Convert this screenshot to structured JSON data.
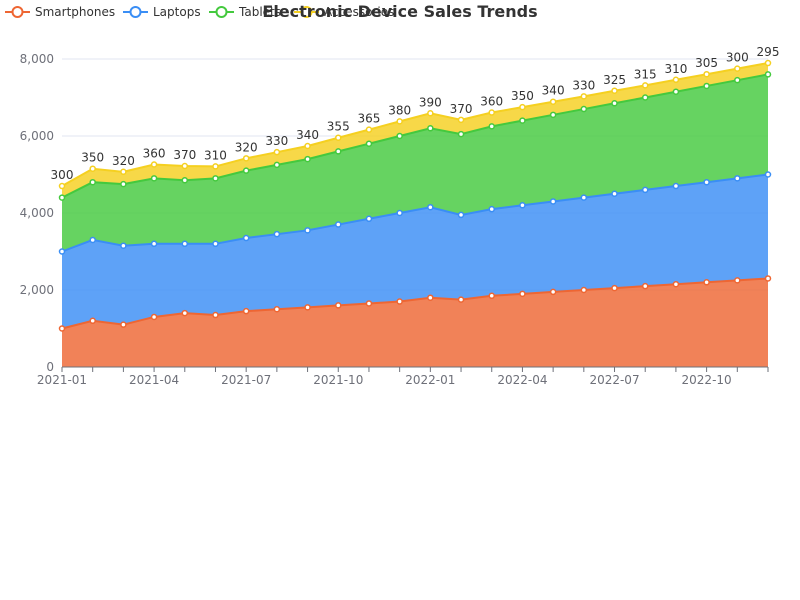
{
  "chart_data": {
    "type": "area",
    "stacked": true,
    "title": "Electronic Device Sales Trends",
    "xlabel": "",
    "ylabel": "",
    "x": [
      "2021-01",
      "2021-02",
      "2021-03",
      "2021-04",
      "2021-05",
      "2021-06",
      "2021-07",
      "2021-08",
      "2021-09",
      "2021-10",
      "2021-11",
      "2021-12",
      "2022-01",
      "2022-02",
      "2022-03",
      "2022-04",
      "2022-05",
      "2022-06",
      "2022-07",
      "2022-08",
      "2022-09",
      "2022-10",
      "2022-11",
      "2022-12"
    ],
    "x_tick_labels": [
      "2021-01",
      "2021-04",
      "2021-07",
      "2021-10",
      "2022-01",
      "2022-04",
      "2022-07",
      "2022-10"
    ],
    "ylim": [
      0,
      8000
    ],
    "y_ticks": [
      0,
      2000,
      4000,
      6000,
      8000
    ],
    "y_tick_labels": [
      "0",
      "2,000",
      "4,000",
      "6,000",
      "8,000"
    ],
    "grid": true,
    "legend_position": "top-left",
    "series": [
      {
        "name": "Smartphones",
        "color": "#ee6633",
        "values": [
          1000,
          1200,
          1100,
          1300,
          1400,
          1350,
          1450,
          1500,
          1550,
          1600,
          1650,
          1700,
          1800,
          1750,
          1850,
          1900,
          1950,
          2000,
          2050,
          2100,
          2150,
          2200,
          2250,
          2300
        ]
      },
      {
        "name": "Laptops",
        "color": "#3a8ef5",
        "values": [
          2000,
          2100,
          2050,
          1900,
          1800,
          1850,
          1900,
          1950,
          2000,
          2100,
          2200,
          2300,
          2350,
          2200,
          2250,
          2300,
          2350,
          2400,
          2450,
          2500,
          2550,
          2600,
          2650,
          2700
        ]
      },
      {
        "name": "Tablets",
        "color": "#44c93e",
        "values": [
          1400,
          1500,
          1600,
          1700,
          1650,
          1700,
          1750,
          1800,
          1850,
          1900,
          1950,
          2000,
          2050,
          2100,
          2150,
          2200,
          2250,
          2300,
          2350,
          2400,
          2450,
          2500,
          2550,
          2600
        ]
      },
      {
        "name": "Accessories",
        "color": "#f5d020",
        "values": [
          300,
          350,
          320,
          360,
          370,
          310,
          320,
          330,
          340,
          355,
          365,
          380,
          390,
          370,
          360,
          350,
          340,
          330,
          325,
          315,
          310,
          305,
          300,
          295
        ],
        "labels": [
          "300",
          "350",
          "320",
          "360",
          "370",
          "310",
          "320",
          "330",
          "340",
          "355",
          "365",
          "380",
          "390",
          "370",
          "360",
          "350",
          "340",
          "330",
          "325",
          "315",
          "310",
          "305",
          "300",
          "295"
        ]
      }
    ]
  }
}
